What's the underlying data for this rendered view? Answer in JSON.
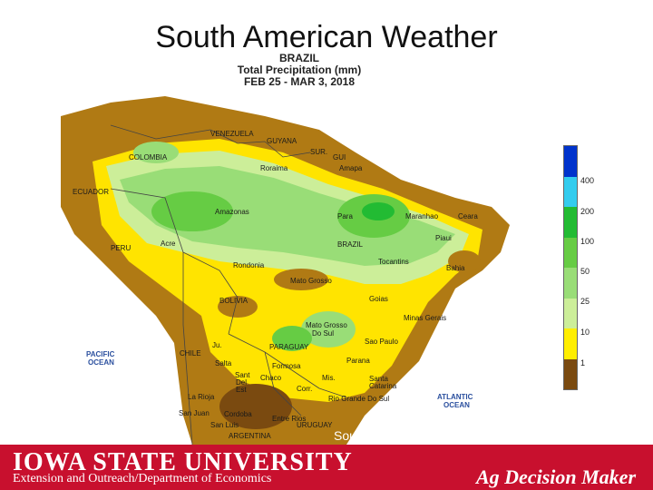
{
  "slide": {
    "title": "South American Weather"
  },
  "map": {
    "header_line1": "BRAZIL",
    "header_line2": "Total Precipitation (mm)",
    "header_line3": "FEB 25 - MAR 3, 2018",
    "labels": {
      "venezuela": "VENEZUELA",
      "guyana": "GUYANA",
      "suriname": "SUR.",
      "french_guiana": "GUI",
      "colombia": "COLOMBIA",
      "ecuador": "ECUADOR",
      "peru": "PERU",
      "bolivia": "BOLIVIA",
      "brazil": "BRAZIL",
      "paraguay": "PARAGUAY",
      "chile": "CHILE",
      "uruguay": "URUGUAY",
      "argentina": "ARGENTINA",
      "roraima": "Roraima",
      "amapa": "Amapa",
      "amazonas": "Amazonas",
      "para": "Para",
      "maranhao": "Maranhao",
      "ceara": "Ceara",
      "piaui": "Piaui",
      "acre": "Acre",
      "rondonia": "Rondonia",
      "tocantins": "Tocantins",
      "bahia": "Bahia",
      "mato_grosso": "Mato Grosso",
      "goias": "Goias",
      "minas_gerais": "Minas Gerais",
      "mato_grosso_do_sul_1": "Mato Grosso",
      "mato_grosso_do_sul_2": "Do Sul",
      "sao_paulo": "Sao Paulo",
      "parana": "Parana",
      "santa_catarina_1": "Santa",
      "santa_catarina_2": "Catarina",
      "rio_grande_do_sul": "Rio Grande Do Sul",
      "formosa": "Formosa",
      "chaco": "Chaco",
      "misiones": "Mis.",
      "corrientes": "Corr.",
      "salta": "Salta",
      "jujuy": "Ju.",
      "santiago_del_estero_1": "Sant",
      "santiago_del_estero_2": "Del",
      "santiago_del_estero_3": "Est",
      "la_rioja": "La Rioja",
      "cordoba": "Cordoba",
      "san_juan": "San Juan",
      "san_luis": "San Luis",
      "entre_rios": "Entre Rios",
      "pacific_1": "PACIFIC",
      "pacific_2": "OCEAN",
      "atlantic_1": "ATLANTIC",
      "atlantic_2": "OCEAN"
    }
  },
  "legend": {
    "colors": [
      "#0033cc",
      "#33ccee",
      "#22bb33",
      "#66cc44",
      "#99dd77",
      "#ccee99",
      "#ffee00",
      "#b8860b"
    ],
    "bottom_color": "#7a4a10",
    "labels": [
      "400",
      "200",
      "100",
      "50",
      "25",
      "10",
      "1"
    ]
  },
  "footer": {
    "university": "IOWA STATE UNIVERSITY",
    "department": "Extension and Outreach/Department of Economics",
    "source": "Source: NOAA, Climate Prediction Center",
    "brand": "Ag Decision Maker"
  }
}
